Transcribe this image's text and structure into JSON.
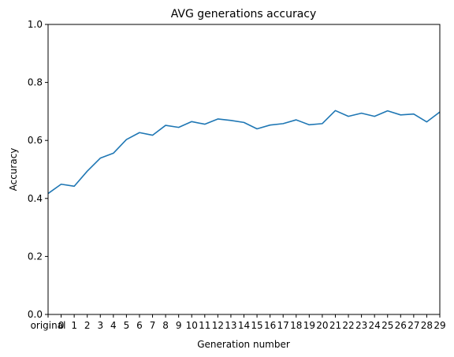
{
  "chart_data": {
    "type": "line",
    "title": "AVG generations accuracy",
    "xlabel": "Generation number",
    "ylabel": "Accuracy",
    "categories": [
      "original",
      "0",
      "1",
      "2",
      "3",
      "4",
      "5",
      "6",
      "7",
      "8",
      "9",
      "10",
      "11",
      "12",
      "13",
      "14",
      "15",
      "16",
      "17",
      "18",
      "19",
      "20",
      "21",
      "22",
      "23",
      "24",
      "25",
      "26",
      "27",
      "28",
      "29"
    ],
    "series": [
      {
        "values": [
          0.417,
          0.449,
          0.442,
          0.494,
          0.539,
          0.556,
          0.603,
          0.627,
          0.618,
          0.652,
          0.645,
          0.665,
          0.656,
          0.674,
          0.669,
          0.662,
          0.64,
          0.653,
          0.658,
          0.671,
          0.654,
          0.658,
          0.703,
          0.683,
          0.694,
          0.683,
          0.702,
          0.688,
          0.691,
          0.664,
          0.698
        ],
        "color": "#1f77b4"
      }
    ],
    "ylim": [
      0,
      1
    ],
    "yticks": [
      "0.0",
      "0.2",
      "0.4",
      "0.6",
      "0.8",
      "1.0"
    ],
    "grid": false,
    "legend": "none"
  }
}
